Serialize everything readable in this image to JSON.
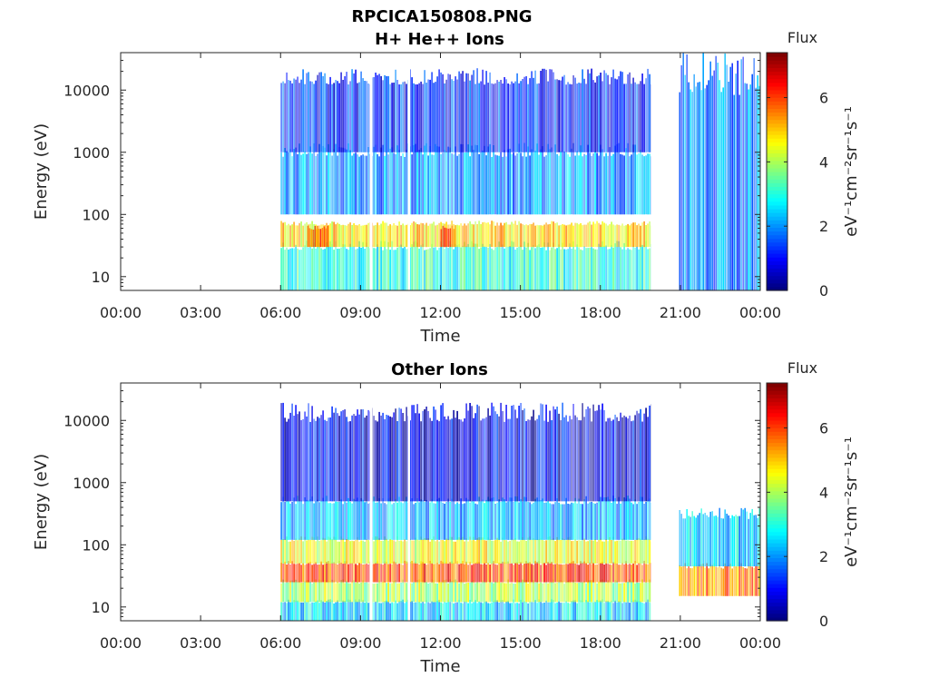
{
  "figure": {
    "title": "RPCICA150808.PNG"
  },
  "chart_data": [
    {
      "type": "heatmap",
      "title": "H+ He++ Ions",
      "xlabel": "Time",
      "ylabel": "Energy (eV)",
      "x_ticks": [
        "00:00",
        "03:00",
        "06:00",
        "09:00",
        "12:00",
        "15:00",
        "18:00",
        "21:00",
        "00:00"
      ],
      "x_range_hours": [
        0,
        24
      ],
      "y_scale": "log",
      "y_ticks": [
        "10",
        "100",
        "1000",
        "10000"
      ],
      "y_range": [
        6,
        40000
      ],
      "data_coverage_hours": [
        [
          6.0,
          19.9
        ],
        [
          20.95,
          24.0
        ]
      ],
      "data_gaps_hours": [
        [
          9.35,
          9.45
        ],
        [
          10.78,
          10.86
        ]
      ],
      "colorbar": {
        "title": "Flux",
        "label": "eV⁻¹cm⁻²sr⁻¹s⁻¹",
        "range": [
          0,
          7.4
        ],
        "ticks": [
          "0",
          "2",
          "4",
          "6"
        ],
        "colormap": "jet"
      },
      "features": [
        {
          "time_hours": [
            6.0,
            19.9
          ],
          "energy_eV": [
            6,
            30
          ],
          "flux": 3.0
        },
        {
          "time_hours": [
            6.0,
            19.9
          ],
          "energy_eV": [
            30,
            70
          ],
          "flux": 4.8
        },
        {
          "time_hours": [
            6.0,
            19.9
          ],
          "energy_eV": [
            100,
            1000
          ],
          "flux": 2.0
        },
        {
          "time_hours": [
            6.0,
            19.9
          ],
          "energy_eV": [
            1000,
            15000
          ],
          "flux": 1.2
        },
        {
          "time_hours": [
            7.0,
            7.8
          ],
          "energy_eV": [
            30,
            60
          ],
          "flux": 6.0
        },
        {
          "time_hours": [
            12.0,
            12.5
          ],
          "energy_eV": [
            30,
            60
          ],
          "flux": 6.0
        },
        {
          "time_hours": [
            20.95,
            24.0
          ],
          "energy_eV": [
            6,
            15000
          ],
          "flux": 1.8
        }
      ]
    },
    {
      "type": "heatmap",
      "title": "Other Ions",
      "xlabel": "Time",
      "ylabel": "Energy (eV)",
      "x_ticks": [
        "00:00",
        "03:00",
        "06:00",
        "09:00",
        "12:00",
        "15:00",
        "18:00",
        "21:00",
        "00:00"
      ],
      "x_range_hours": [
        0,
        24
      ],
      "y_scale": "log",
      "y_ticks": [
        "10",
        "100",
        "1000",
        "10000"
      ],
      "y_range": [
        6,
        40000
      ],
      "data_coverage_hours": [
        [
          6.0,
          19.9
        ],
        [
          20.95,
          24.0
        ]
      ],
      "data_gaps_hours": [
        [
          9.35,
          9.45
        ],
        [
          10.78,
          10.86
        ]
      ],
      "colorbar": {
        "title": "Flux",
        "label": "eV⁻¹cm⁻²sr⁻¹s⁻¹",
        "range": [
          0,
          7.4
        ],
        "ticks": [
          "0",
          "2",
          "4",
          "6"
        ],
        "colormap": "jet"
      },
      "features": [
        {
          "time_hours": [
            6.0,
            19.9
          ],
          "energy_eV": [
            6,
            12
          ],
          "flux": 2.5
        },
        {
          "time_hours": [
            6.0,
            19.9
          ],
          "energy_eV": [
            12,
            25
          ],
          "flux": 4.0
        },
        {
          "time_hours": [
            6.0,
            19.9
          ],
          "energy_eV": [
            25,
            50
          ],
          "flux": 6.0
        },
        {
          "time_hours": [
            6.0,
            19.9
          ],
          "energy_eV": [
            50,
            120
          ],
          "flux": 4.5
        },
        {
          "time_hours": [
            6.0,
            19.9
          ],
          "energy_eV": [
            120,
            500
          ],
          "flux": 2.2
        },
        {
          "time_hours": [
            6.0,
            19.9
          ],
          "energy_eV": [
            500,
            12000
          ],
          "flux": 0.8
        },
        {
          "time_hours": [
            20.95,
            24.0
          ],
          "energy_eV": [
            15,
            45
          ],
          "flux": 5.5
        },
        {
          "time_hours": [
            20.95,
            24.0
          ],
          "energy_eV": [
            45,
            300
          ],
          "flux": 2.5
        }
      ]
    }
  ]
}
